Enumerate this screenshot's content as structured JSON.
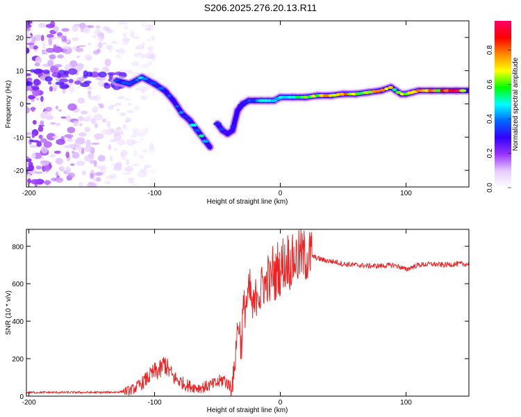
{
  "title": "S206.2025.276.20.13.R11",
  "chart_data": [
    {
      "type": "heatmap",
      "title": "S206.2025.276.20.13.R11",
      "xlabel": "Height of straight line (km)",
      "ylabel": "Frequency (Hz)",
      "xlim": [
        -202,
        150
      ],
      "ylim": [
        -25,
        25
      ],
      "xticks": [
        -200,
        -100,
        0,
        100
      ],
      "yticks": [
        -20,
        -10,
        0,
        10,
        20
      ],
      "colorbar": {
        "label": "Normalized spectral amplitude",
        "range": [
          0,
          0.97
        ],
        "ticks": [
          0.0,
          0.2,
          0.4,
          0.6,
          0.8
        ],
        "tick_labels": [
          "0.0",
          "0.2",
          "0.4",
          "0.6",
          "0.8"
        ],
        "colormap": [
          "#ffffff",
          "#e6ccff",
          "#9933ff",
          "#3300ff",
          "#0066ff",
          "#00ffff",
          "#00ff00",
          "#ffff00",
          "#ff8800",
          "#ff0000",
          "#ff0066"
        ]
      },
      "ridge": {
        "name": "dominant frequency",
        "x": [
          -130,
          -120,
          -110,
          -100,
          -92,
          -85,
          -78,
          -72,
          -66,
          -60,
          -56,
          -50,
          -46,
          -42,
          -38,
          -34,
          -30,
          -25,
          -20,
          -15,
          -10,
          -5,
          0,
          10,
          20,
          30,
          40,
          50,
          60,
          70,
          80,
          88,
          92,
          96,
          100,
          105,
          110,
          120,
          130,
          140,
          150
        ],
        "y": [
          7,
          6,
          8,
          6,
          4,
          1,
          -3,
          -5,
          -8,
          -11,
          -13,
          -6,
          -8,
          -9,
          -8,
          -2,
          0,
          1,
          1,
          1,
          1,
          1,
          2,
          2,
          2,
          2.5,
          2.5,
          3,
          3,
          3.5,
          4,
          5,
          4,
          3,
          3,
          3.5,
          4,
          4,
          4,
          4,
          4
        ],
        "amplitude": [
          0.35,
          0.4,
          0.45,
          0.4,
          0.35,
          0.35,
          0.4,
          0.45,
          0.5,
          0.55,
          0.3,
          0.4,
          0.35,
          0.35,
          0.3,
          0.3,
          0.3,
          0.4,
          0.45,
          0.5,
          0.5,
          0.5,
          0.55,
          0.6,
          0.7,
          0.75,
          0.8,
          0.8,
          0.75,
          0.7,
          0.75,
          0.7,
          0.65,
          0.65,
          0.6,
          0.7,
          0.75,
          0.8,
          0.85,
          0.85,
          0.85
        ]
      },
      "noise_region": {
        "x_range": [
          -202,
          -120
        ],
        "y_range": [
          -25,
          25
        ]
      }
    },
    {
      "type": "line",
      "xlabel": "Height of straight line (km)",
      "ylabel": "SNR (10 * v/v)",
      "xlim": [
        -202,
        150
      ],
      "ylim": [
        0,
        890
      ],
      "xticks": [
        -200,
        -100,
        0,
        100
      ],
      "yticks": [
        0,
        200,
        400,
        600,
        800
      ],
      "series": [
        {
          "name": "SNR",
          "color": "#ee2222",
          "x": [
            -202,
            -190,
            -180,
            -170,
            -160,
            -150,
            -140,
            -130,
            -125,
            -120,
            -115,
            -110,
            -105,
            -100,
            -95,
            -92,
            -90,
            -88,
            -85,
            -80,
            -75,
            -70,
            -65,
            -60,
            -55,
            -50,
            -45,
            -40,
            -37,
            -35,
            -33,
            -31,
            -30,
            -28,
            -26,
            -24,
            -22,
            -20,
            -18,
            -16,
            -14,
            -12,
            -10,
            -8,
            -6,
            -4,
            -2,
            0,
            2,
            4,
            6,
            8,
            10,
            12,
            14,
            16,
            18,
            20,
            22,
            24,
            26,
            28,
            30,
            35,
            40,
            45,
            50,
            60,
            70,
            80,
            90,
            95,
            100,
            105,
            110,
            120,
            130,
            140,
            150
          ],
          "y": [
            20,
            20,
            20,
            20,
            20,
            20,
            20,
            22,
            25,
            30,
            45,
            70,
            100,
            130,
            140,
            180,
            150,
            130,
            100,
            80,
            60,
            50,
            45,
            50,
            60,
            70,
            90,
            50,
            100,
            300,
            400,
            250,
            430,
            480,
            520,
            560,
            450,
            500,
            600,
            520,
            620,
            580,
            640,
            600,
            680,
            620,
            700,
            650,
            720,
            690,
            740,
            700,
            720,
            740,
            730,
            760,
            745,
            750,
            740,
            755,
            745,
            740,
            735,
            725,
            720,
            715,
            705,
            700,
            695,
            695,
            700,
            690,
            675,
            690,
            700,
            705,
            700,
            705,
            705
          ]
        }
      ]
    }
  ]
}
